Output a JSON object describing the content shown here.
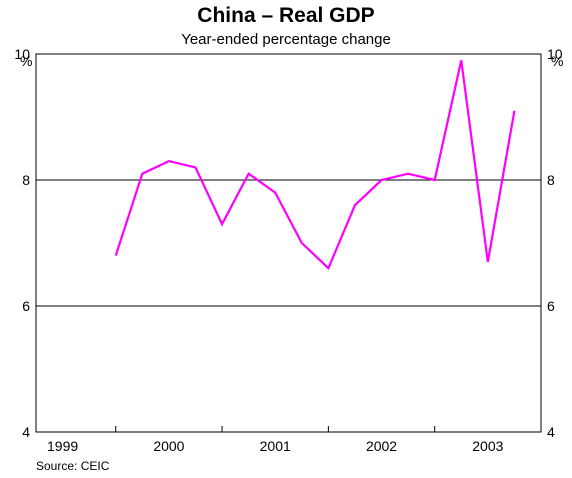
{
  "chart_data": {
    "type": "line",
    "title": "China – Real GDP",
    "subtitle": "Year-ended percentage change",
    "unit_left": "%",
    "unit_right": "%",
    "source": "Source: CEIC",
    "ylim": [
      4,
      10
    ],
    "yticks": [
      4,
      6,
      8,
      10
    ],
    "gridlines": [
      6,
      8,
      10
    ],
    "xlim": [
      1998.75,
      2003.5
    ],
    "year_labels": [
      "1999",
      "2000",
      "2001",
      "2002",
      "2003"
    ],
    "series": [
      {
        "color": "#ff00ff",
        "x": [
          1999.5,
          1999.75,
          2000.0,
          2000.25,
          2000.5,
          2000.75,
          2001.0,
          2001.25,
          2001.5,
          2001.75,
          2002.0,
          2002.25,
          2002.5,
          2002.75,
          2003.0,
          2003.25
        ],
        "values": [
          6.8,
          8.1,
          8.3,
          8.2,
          7.3,
          8.1,
          7.8,
          7.0,
          6.6,
          7.6,
          8.0,
          8.1,
          8.0,
          9.9,
          6.7,
          9.1
        ]
      }
    ]
  }
}
